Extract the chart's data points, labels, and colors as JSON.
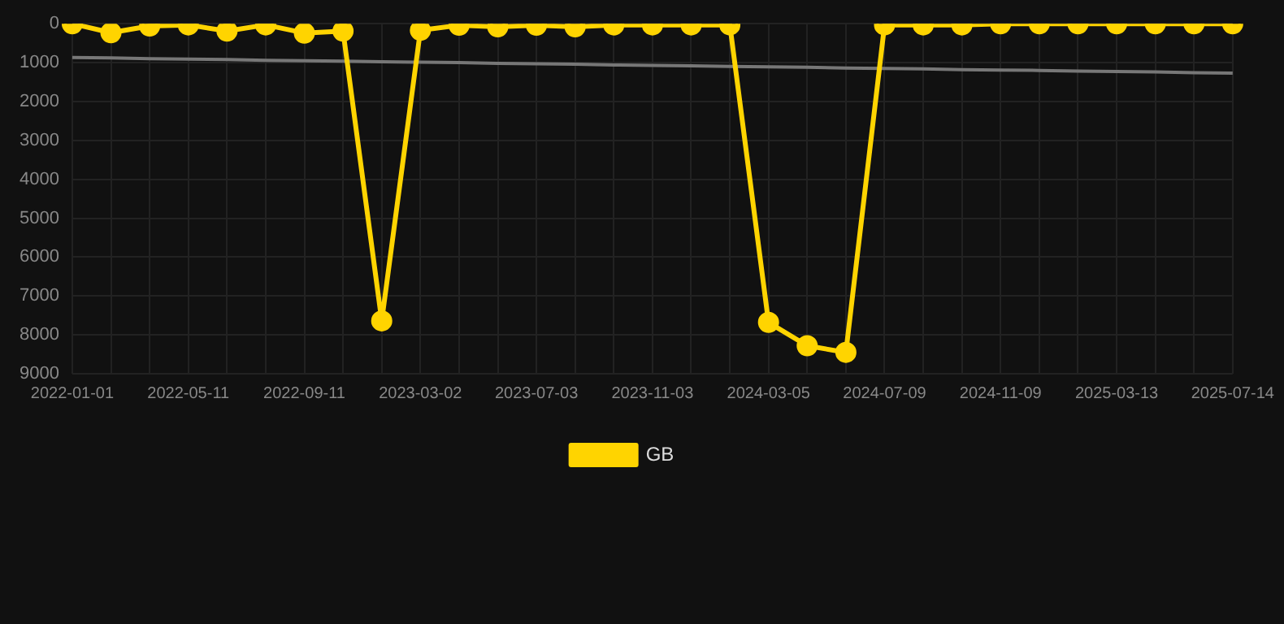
{
  "chart_data": {
    "type": "line",
    "categories": [
      "2022-01-01",
      null,
      null,
      "2022-05-11",
      null,
      null,
      "2022-09-11",
      null,
      null,
      "2023-03-02",
      null,
      null,
      "2023-07-03",
      null,
      null,
      "2023-11-03",
      null,
      null,
      "2024-03-05",
      null,
      null,
      "2024-07-09",
      null,
      null,
      "2024-11-09",
      null,
      null,
      "2025-03-13",
      null,
      null,
      "2025-07-14"
    ],
    "series": [
      {
        "name": "GB",
        "color": "#ffd400",
        "values": [
          0,
          230,
          60,
          30,
          190,
          30,
          240,
          190,
          7640,
          170,
          40,
          80,
          40,
          80,
          30,
          30,
          30,
          30,
          7680,
          8280,
          8450,
          30,
          30,
          30,
          0,
          0,
          0,
          0,
          0,
          0,
          0
        ]
      },
      {
        "type": "line",
        "color": "#777777",
        "values": [
          870,
          880,
          900,
          910,
          920,
          940,
          950,
          960,
          980,
          990,
          1000,
          1020,
          1030,
          1040,
          1060,
          1070,
          1080,
          1100,
          1110,
          1120,
          1140,
          1150,
          1160,
          1180,
          1190,
          1200,
          1220,
          1230,
          1240,
          1260,
          1270
        ],
        "marker": "none"
      }
    ],
    "ylim": [
      9000,
      0
    ],
    "yticks": [
      0,
      1000,
      2000,
      3000,
      4000,
      5000,
      6000,
      7000,
      8000,
      9000
    ],
    "grid": true,
    "legend": "bottom",
    "marker": "circle",
    "line_style": "solid"
  }
}
